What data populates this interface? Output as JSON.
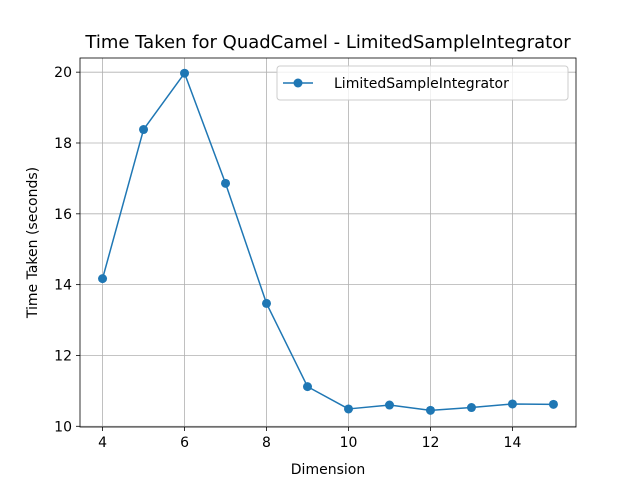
{
  "chart_data": {
    "type": "line",
    "title": "Time Taken for QuadCamel - LimitedSampleIntegrator",
    "xlabel": "Dimension",
    "ylabel": "Time Taken (seconds)",
    "xlim": [
      3.45,
      15.55
    ],
    "ylim": [
      9.98,
      20.4
    ],
    "xticks": [
      4,
      6,
      8,
      10,
      12,
      14
    ],
    "yticks": [
      10,
      12,
      14,
      16,
      18,
      20
    ],
    "xtick_labels": [
      "4",
      "6",
      "8",
      "10",
      "12",
      "14"
    ],
    "ytick_labels": [
      "10",
      "12",
      "14",
      "16",
      "18",
      "20"
    ],
    "grid": true,
    "legend_position": "top-right",
    "series": [
      {
        "name": "LimitedSampleIntegrator",
        "color": "#1f77b4",
        "marker": "circle",
        "x": [
          4,
          5,
          6,
          7,
          8,
          9,
          10,
          11,
          12,
          13,
          14,
          15
        ],
        "y": [
          14.17,
          18.38,
          19.97,
          16.86,
          13.47,
          11.12,
          10.49,
          10.6,
          10.45,
          10.53,
          10.63,
          10.62
        ]
      }
    ]
  }
}
